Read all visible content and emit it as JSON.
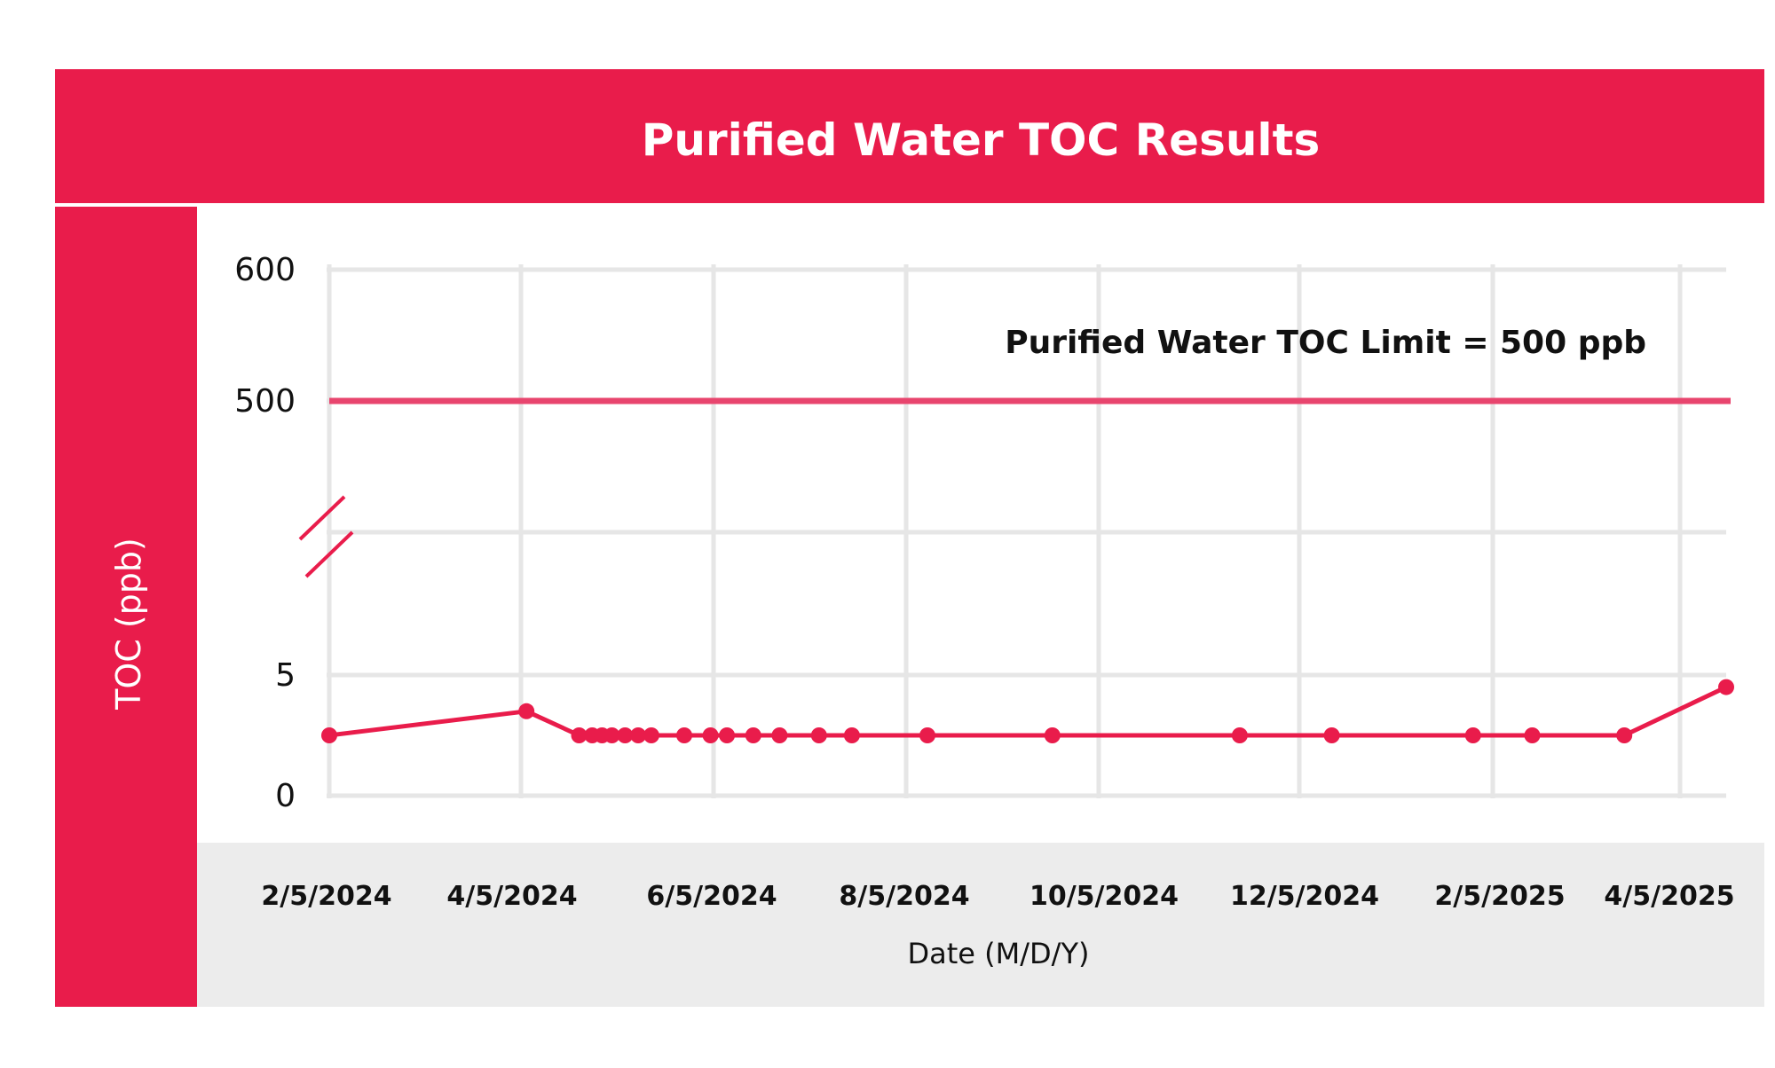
{
  "chart_data": {
    "type": "line",
    "title": "Purified Water TOC Results",
    "xlabel": "Date (M/D/Y)",
    "ylabel": "TOC (ppb)",
    "x_tick_labels": [
      "2/5/2024",
      "4/5/2024",
      "6/5/2024",
      "8/5/2024",
      "10/5/2024",
      "12/5/2024",
      "2/5/2025",
      "4/5/2025"
    ],
    "y_axis": {
      "broken": true,
      "lower_range": [
        0,
        5
      ],
      "upper_range": [
        500,
        600
      ],
      "tick_labels": [
        "600",
        "500",
        "5",
        "0"
      ]
    },
    "grid": true,
    "reference_line": {
      "label": "Purified Water TOC Limit = 500 ppb",
      "value": 500
    },
    "series": [
      {
        "x": [
          "2024-02-05",
          "2024-04-05",
          "2024-04-21",
          "2024-04-25",
          "2024-04-28",
          "2024-05-01",
          "2024-05-05",
          "2024-05-09",
          "2024-05-13",
          "2024-05-23",
          "2024-05-31",
          "2024-06-05",
          "2024-06-13",
          "2024-06-21",
          "2024-07-03",
          "2024-07-13",
          "2024-08-05",
          "2024-09-12",
          "2024-11-08",
          "2024-12-06",
          "2025-01-18",
          "2025-02-05",
          "2025-03-05",
          "2025-04-05"
        ],
        "y": [
          2.5,
          3.5,
          2.5,
          2.5,
          2.5,
          2.5,
          2.5,
          2.5,
          2.5,
          2.5,
          2.5,
          2.5,
          2.5,
          2.5,
          2.5,
          2.5,
          2.5,
          2.5,
          2.5,
          2.5,
          2.5,
          2.5,
          2.5,
          4.5
        ]
      }
    ],
    "colors": {
      "accent": "#e91c4b",
      "limit_line": "#e8456e",
      "grid": "#e6e6e6",
      "footer_band": "#ececec",
      "text": "#111111"
    }
  }
}
